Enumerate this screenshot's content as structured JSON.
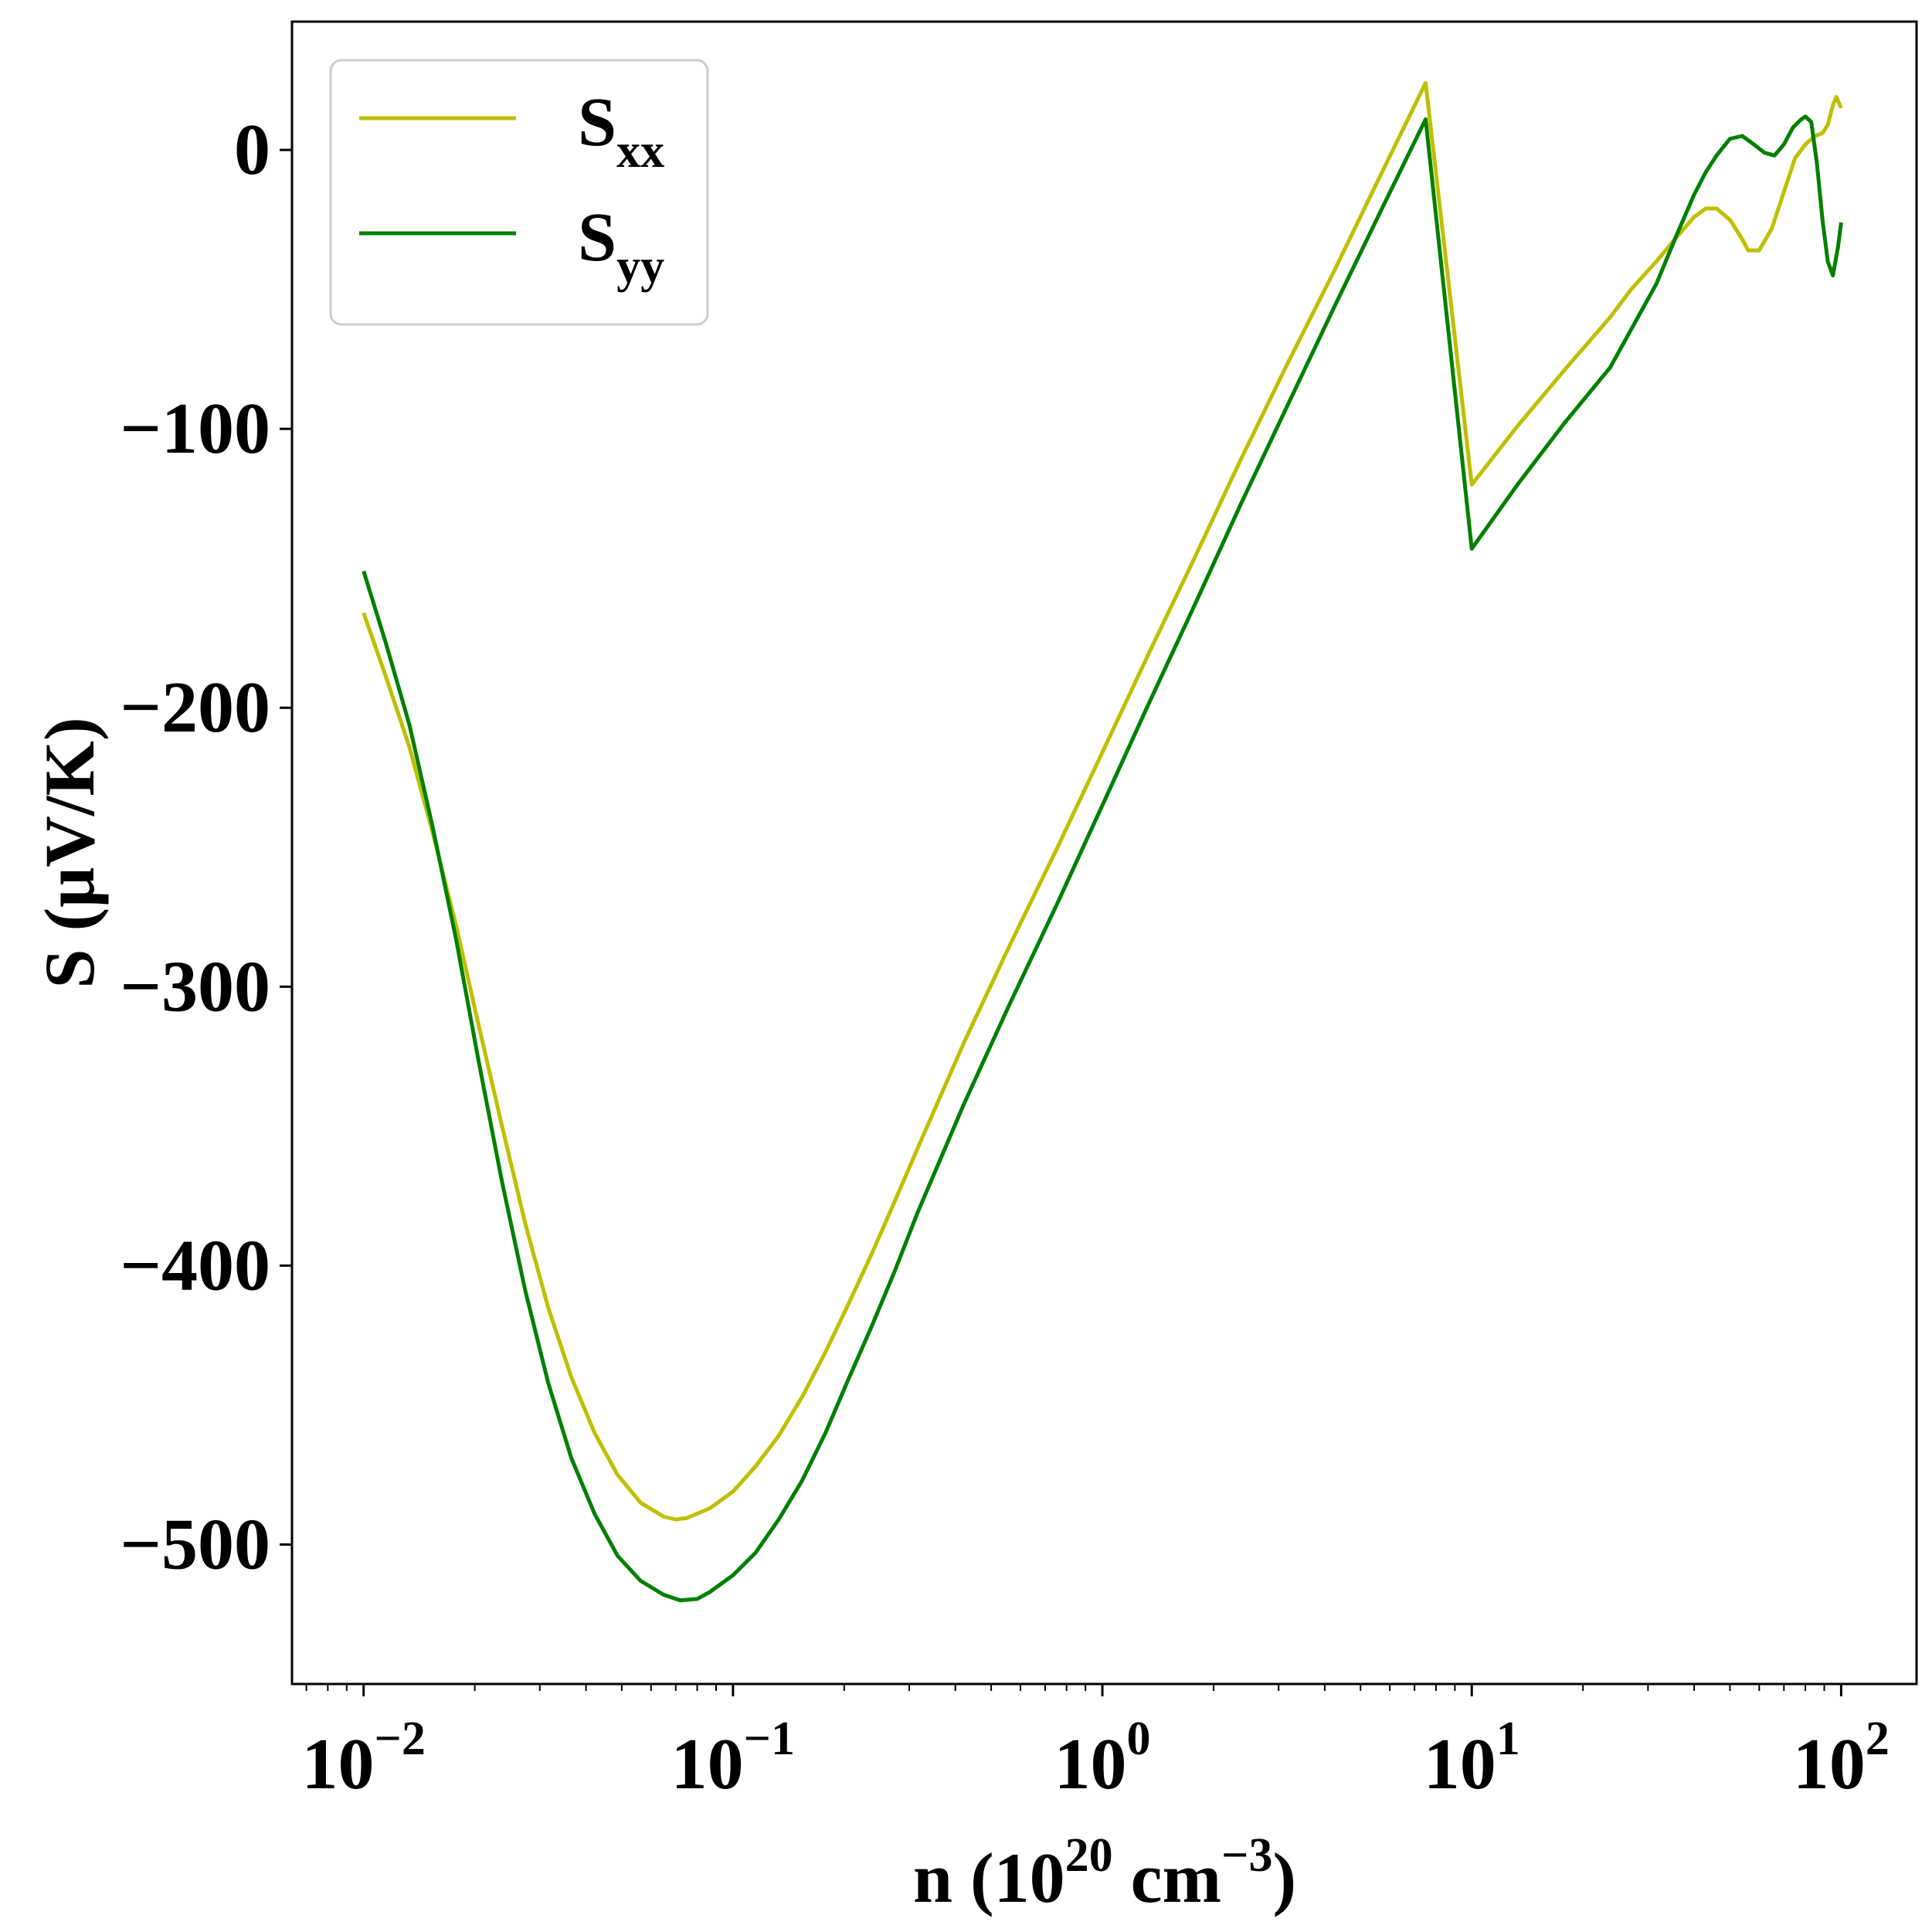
{
  "chart_data": {
    "type": "line",
    "x_scale": "log",
    "xlim": [
      0.0064,
      160
    ],
    "ylim": [
      -550,
      46
    ],
    "grid": false,
    "legend_position": "top-left",
    "xlabel": {
      "prefix": "n (10",
      "exp1": "20",
      "middle": " cm",
      "exp2": "−3",
      "suffix": ")"
    },
    "ylabel": "S (μV/K)",
    "x_ticks": [
      {
        "value": 0.01,
        "base": "10",
        "exp": "−2"
      },
      {
        "value": 0.1,
        "base": "10",
        "exp": "−1"
      },
      {
        "value": 1,
        "base": "10",
        "exp": "0"
      },
      {
        "value": 10,
        "base": "10",
        "exp": "1"
      },
      {
        "value": 100,
        "base": "10",
        "exp": "2"
      }
    ],
    "y_ticks": [
      {
        "value": 0,
        "label": "0"
      },
      {
        "value": -100,
        "label": "−100"
      },
      {
        "value": -200,
        "label": "−200"
      },
      {
        "value": -300,
        "label": "−300"
      },
      {
        "value": -400,
        "label": "−400"
      },
      {
        "value": -500,
        "label": "−500"
      }
    ],
    "series": [
      {
        "name": "S_xx",
        "legend": {
          "main": "S",
          "sub": "xx"
        },
        "color": "#bfbf00",
        "x": [
          0.01,
          0.0115,
          0.0133,
          0.0154,
          0.0178,
          0.0205,
          0.0237,
          0.0274,
          0.0316,
          0.0365,
          0.0422,
          0.0487,
          0.0562,
          0.0649,
          0.07,
          0.075,
          0.0866,
          0.1,
          0.115,
          0.133,
          0.154,
          0.178,
          0.205,
          0.237,
          0.274,
          0.316,
          0.422,
          0.562,
          0.75,
          1.0,
          1.33,
          1.78,
          2.37,
          3.16,
          4.22,
          5.62,
          7.5,
          10,
          13.3,
          17.8,
          23.7,
          27,
          31.6,
          36,
          40,
          43,
          46,
          50,
          54,
          56,
          60,
          65,
          70,
          75,
          80,
          85,
          89,
          92,
          95,
          97,
          100
        ],
        "y": [
          -166,
          -189,
          -214,
          -245,
          -278,
          -314,
          -350,
          -385,
          -415,
          -440,
          -460,
          -475,
          -485,
          -490,
          -491,
          -490.5,
          -487,
          -481,
          -472,
          -461,
          -447,
          -431,
          -414,
          -396,
          -377,
          -358,
          -320,
          -285,
          -251,
          -216,
          -181,
          -146,
          -111,
          -77,
          -44,
          -10,
          24,
          -120,
          -99,
          -79,
          -60,
          -50,
          -40,
          -31,
          -24,
          -21,
          -21,
          -25,
          -32,
          -36,
          -36,
          -28,
          -15,
          -3,
          2,
          5,
          6,
          9,
          16,
          19,
          15
        ]
      },
      {
        "name": "S_yy",
        "legend": {
          "main": "S",
          "sub": "yy"
        },
        "color": "#008000",
        "x": [
          0.01,
          0.0115,
          0.0133,
          0.0154,
          0.0178,
          0.0205,
          0.0237,
          0.0274,
          0.0316,
          0.0365,
          0.0422,
          0.0487,
          0.0562,
          0.0649,
          0.072,
          0.08,
          0.0866,
          0.1,
          0.115,
          0.133,
          0.154,
          0.178,
          0.205,
          0.237,
          0.274,
          0.316,
          0.422,
          0.562,
          0.75,
          1.0,
          1.33,
          1.78,
          2.37,
          3.16,
          4.22,
          5.62,
          7.5,
          10,
          13.3,
          17.8,
          23.7,
          31.6,
          36,
          40,
          43,
          46,
          50,
          54,
          58,
          62,
          66,
          70,
          74,
          78,
          80,
          83,
          86,
          89,
          92,
          95,
          98,
          100
        ],
        "y": [
          -151,
          -177,
          -206,
          -243,
          -283,
          -327,
          -370,
          -409,
          -442,
          -469,
          -489,
          -504,
          -513,
          -518,
          -520,
          -519.5,
          -517,
          -511,
          -503,
          -491,
          -477,
          -460,
          -441,
          -422,
          -402,
          -381,
          -342,
          -306,
          -271,
          -235,
          -199,
          -163,
          -127,
          -92,
          -57,
          -23,
          11,
          -143,
          -120,
          -98,
          -78,
          -48,
          -30,
          -16,
          -8,
          -2,
          4,
          5,
          2,
          -1,
          -2,
          2,
          8,
          11,
          12,
          10,
          -5,
          -25,
          -40,
          -45,
          -35,
          -26
        ]
      }
    ]
  }
}
